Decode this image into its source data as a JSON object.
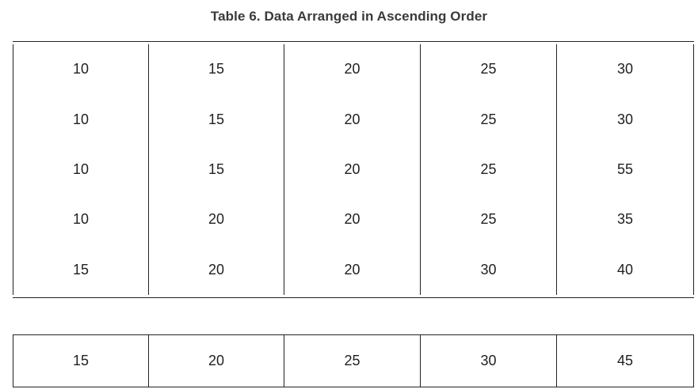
{
  "title": "Table 6. Data Arranged in Ascending Order",
  "main_table": {
    "rows": [
      [
        "10",
        "15",
        "20",
        "25",
        "30"
      ],
      [
        "10",
        "15",
        "20",
        "25",
        "30"
      ],
      [
        "10",
        "15",
        "20",
        "25",
        "55"
      ],
      [
        "10",
        "20",
        "20",
        "25",
        "35"
      ],
      [
        "15",
        "20",
        "20",
        "30",
        "40"
      ]
    ]
  },
  "secondary_table": {
    "rows": [
      [
        "15",
        "20",
        "25",
        "30",
        "45"
      ]
    ]
  }
}
